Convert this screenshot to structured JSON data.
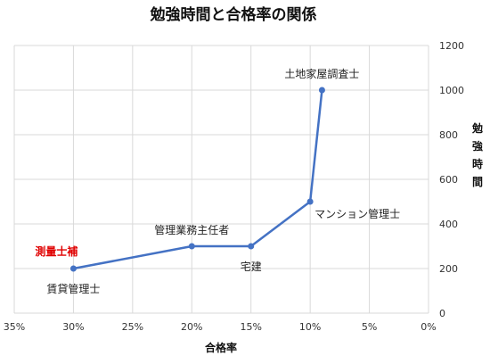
{
  "chart_data": {
    "type": "line",
    "title": "勉強時間と合格率の関係",
    "xlabel": "合格率",
    "ylabel": "勉強時間",
    "x_axis_reversed": true,
    "xlim": [
      0,
      35
    ],
    "ylim": [
      0,
      1200
    ],
    "x_ticks": [
      "35%",
      "30%",
      "25%",
      "20%",
      "15%",
      "10%",
      "5%",
      "0%"
    ],
    "x_tick_values": [
      35,
      30,
      25,
      20,
      15,
      10,
      5,
      0
    ],
    "y_ticks": [
      "0",
      "200",
      "400",
      "600",
      "800",
      "1000",
      "1200"
    ],
    "y_tick_values": [
      0,
      200,
      400,
      600,
      800,
      1000,
      1200
    ],
    "grid": "vertical and horizontal",
    "series": [
      {
        "color": "#4472c4",
        "points": [
          {
            "x": 30,
            "y": 200,
            "label": "賃貸管理士",
            "label_pos": "below"
          },
          {
            "x": 20,
            "y": 300,
            "label": "管理業務主任者",
            "label_pos": "above"
          },
          {
            "x": 15,
            "y": 300,
            "label": "宅建",
            "label_pos": "below"
          },
          {
            "x": 10,
            "y": 500,
            "label": "マンション管理士",
            "label_pos": "below-right"
          },
          {
            "x": 9,
            "y": 1000,
            "label": "土地家屋調査士",
            "label_pos": "above"
          }
        ]
      }
    ],
    "annotations": [
      {
        "text": "測量士補",
        "x": 30,
        "y": 200,
        "color": "#e00000",
        "bold": true
      }
    ]
  }
}
